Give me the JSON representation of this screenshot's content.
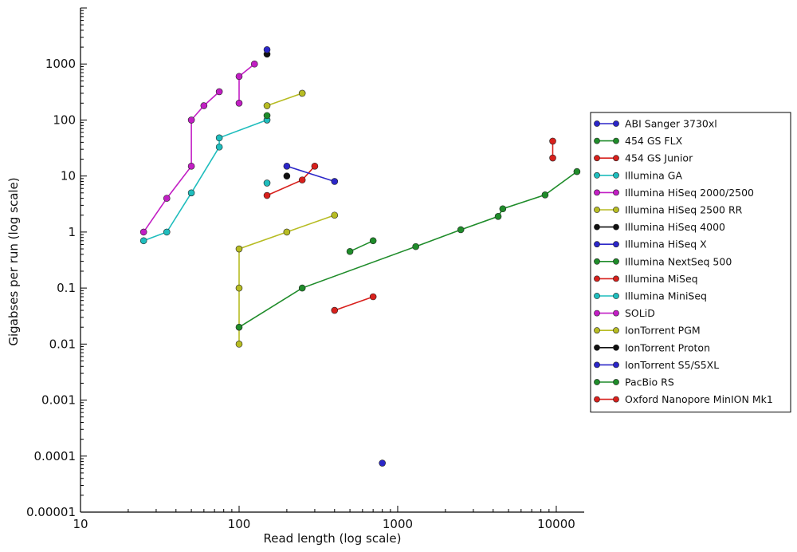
{
  "chart_data": {
    "type": "line",
    "title": "",
    "xlabel": "Read length (log scale)",
    "ylabel": "Gigabses per run (log scale)",
    "xscale": "log",
    "yscale": "log",
    "xlim": [
      10,
      15000
    ],
    "ylim": [
      1e-05,
      10000
    ],
    "xticks": [
      10,
      100,
      1000,
      10000
    ],
    "xtick_labels": [
      "10",
      "100",
      "1000",
      "10000"
    ],
    "yticks": [
      1e-05,
      0.0001,
      0.001,
      0.01,
      0.1,
      1,
      10,
      100,
      1000
    ],
    "ytick_labels": [
      "0.00001",
      "0.0001",
      "0.001",
      "0.01",
      "0.1",
      "1",
      "10",
      "100",
      "1000"
    ],
    "grid": false,
    "legend_position": "right",
    "series": [
      {
        "name": "ABI Sanger 3730xl",
        "color": "#2b26c8",
        "points": [
          [
            800,
            7.5e-05
          ]
        ]
      },
      {
        "name": "454 GS FLX",
        "color": "#1f8c2a",
        "points": [
          [
            500,
            0.45
          ],
          [
            700,
            0.7
          ]
        ]
      },
      {
        "name": "454 GS Junior",
        "color": "#d8201c",
        "points": [
          [
            400,
            0.04
          ],
          [
            700,
            0.07
          ]
        ]
      },
      {
        "name": "Illumina GA",
        "color": "#1fbdbd",
        "points": [
          [
            25,
            0.7
          ],
          [
            35,
            1
          ],
          [
            50,
            5
          ],
          [
            75,
            33
          ],
          [
            75,
            48
          ],
          [
            150,
            100
          ]
        ]
      },
      {
        "name": "Illumina HiSeq 2000/2500",
        "color": "#c21ec4",
        "points": [
          [
            100,
            200
          ],
          [
            100,
            600
          ],
          [
            125,
            1000
          ]
        ]
      },
      {
        "name": "Illumina HiSeq 2500 RR",
        "color": "#b7bc23",
        "points": [
          [
            150,
            180
          ],
          [
            250,
            300
          ]
        ]
      },
      {
        "name": "Illumina HiSeq 4000",
        "color": "#111111",
        "points": [
          [
            150,
            1500
          ]
        ]
      },
      {
        "name": "Illumina HiSeq X",
        "color": "#2b26c8",
        "points": [
          [
            150,
            1800
          ]
        ]
      },
      {
        "name": "Illumina NextSeq 500",
        "color": "#1f8c2a",
        "points": [
          [
            150,
            120
          ]
        ]
      },
      {
        "name": "Illumina MiSeq",
        "color": "#d8201c",
        "points": [
          [
            150,
            4.5
          ],
          [
            250,
            8.5
          ],
          [
            300,
            15
          ]
        ]
      },
      {
        "name": "Illumina MiniSeq",
        "color": "#1fbdbd",
        "points": [
          [
            150,
            7.5
          ]
        ]
      },
      {
        "name": "SOLiD",
        "color": "#c21ec4",
        "points": [
          [
            25,
            1
          ],
          [
            35,
            4
          ],
          [
            50,
            15
          ],
          [
            50,
            100
          ],
          [
            60,
            180
          ],
          [
            75,
            320
          ]
        ]
      },
      {
        "name": "IonTorrent PGM",
        "color": "#b7bc23",
        "points": [
          [
            100,
            0.01
          ],
          [
            100,
            0.1
          ],
          [
            100,
            0.5
          ],
          [
            200,
            1
          ],
          [
            400,
            2
          ]
        ]
      },
      {
        "name": "IonTorrent Proton",
        "color": "#111111",
        "points": [
          [
            200,
            10
          ]
        ]
      },
      {
        "name": "IonTorrent S5/S5XL",
        "color": "#2b26c8",
        "points": [
          [
            200,
            15
          ],
          [
            400,
            8
          ]
        ]
      },
      {
        "name": "PacBio RS",
        "color": "#1f8c2a",
        "points": [
          [
            100,
            0.02
          ],
          [
            250,
            0.1
          ],
          [
            1300,
            0.55
          ],
          [
            2500,
            1.1
          ],
          [
            4300,
            1.9
          ],
          [
            4600,
            2.6
          ],
          [
            8500,
            4.6
          ],
          [
            13500,
            12
          ]
        ]
      },
      {
        "name": "Oxford Nanopore MinION Mk1",
        "color": "#d8201c",
        "points": [
          [
            9500,
            21
          ],
          [
            9500,
            42
          ]
        ]
      }
    ]
  }
}
